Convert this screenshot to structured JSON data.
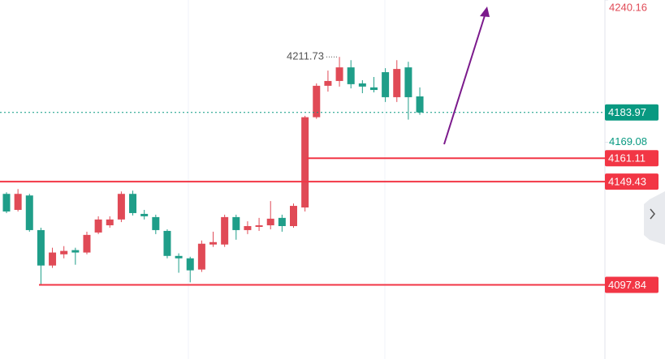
{
  "chart_data": {
    "type": "candlestick",
    "up_color": "#e04a56",
    "down_color": "#1f9e89",
    "level_color": "#f23645",
    "last_color": "#089981",
    "ylim": [
      4060.8,
      4240.16
    ],
    "yticks": [
      4240.16,
      4169.08
    ],
    "last_price": 4183.97,
    "high_label": 4211.73,
    "levels": [
      4161.11,
      4149.43,
      4097.84
    ],
    "candles": [
      {
        "open": 4143.3,
        "high": 4144.1,
        "low": 4133.7,
        "close": 4134.5
      },
      {
        "open": 4135.3,
        "high": 4145.7,
        "low": 4134.5,
        "close": 4143.3
      },
      {
        "open": 4142.5,
        "high": 4143.3,
        "low": 4124.4,
        "close": 4125.2
      },
      {
        "open": 4125.2,
        "high": 4126.4,
        "low": 4097.84,
        "close": 4107.5
      },
      {
        "open": 4107.5,
        "high": 4116.4,
        "low": 4106.3,
        "close": 4114.0
      },
      {
        "open": 4113.1,
        "high": 4117.2,
        "low": 4111.1,
        "close": 4114.8
      },
      {
        "open": 4115.2,
        "high": 4116.4,
        "low": 4107.9,
        "close": 4114.0
      },
      {
        "open": 4114.0,
        "high": 4124.4,
        "low": 4113.1,
        "close": 4122.8
      },
      {
        "open": 4124.0,
        "high": 4132.1,
        "low": 4123.2,
        "close": 4130.5
      },
      {
        "open": 4127.6,
        "high": 4132.1,
        "low": 4126.4,
        "close": 4130.5
      },
      {
        "open": 4130.5,
        "high": 4144.5,
        "low": 4129.2,
        "close": 4143.3
      },
      {
        "open": 4143.3,
        "high": 4144.9,
        "low": 4132.5,
        "close": 4133.7
      },
      {
        "open": 4133.3,
        "high": 4135.3,
        "low": 4130.5,
        "close": 4132.1
      },
      {
        "open": 4131.7,
        "high": 4132.9,
        "low": 4123.2,
        "close": 4125.2
      },
      {
        "open": 4124.8,
        "high": 4125.6,
        "low": 4111.1,
        "close": 4112.3
      },
      {
        "open": 4112.3,
        "high": 4113.6,
        "low": 4103.9,
        "close": 4111.1
      },
      {
        "open": 4111.1,
        "high": 4111.9,
        "low": 4099.1,
        "close": 4105.1
      },
      {
        "open": 4105.5,
        "high": 4120.0,
        "low": 4104.3,
        "close": 4118.4
      },
      {
        "open": 4118.0,
        "high": 4124.4,
        "low": 4116.8,
        "close": 4119.2
      },
      {
        "open": 4118.0,
        "high": 4132.9,
        "low": 4116.8,
        "close": 4131.7
      },
      {
        "open": 4131.7,
        "high": 4132.9,
        "low": 4120.4,
        "close": 4125.2
      },
      {
        "open": 4125.2,
        "high": 4129.6,
        "low": 4123.2,
        "close": 4127.2
      },
      {
        "open": 4126.8,
        "high": 4131.3,
        "low": 4124.8,
        "close": 4127.6
      },
      {
        "open": 4127.6,
        "high": 4139.7,
        "low": 4125.6,
        "close": 4130.9
      },
      {
        "open": 4131.3,
        "high": 4132.9,
        "low": 4124.4,
        "close": 4127.2
      },
      {
        "open": 4127.2,
        "high": 4138.5,
        "low": 4126.4,
        "close": 4137.3
      },
      {
        "open": 4136.5,
        "high": 4182.3,
        "low": 4134.5,
        "close": 4181.6
      },
      {
        "open": 4181.6,
        "high": 4198.5,
        "low": 4180.8,
        "close": 4197.3
      },
      {
        "open": 4197.3,
        "high": 4204.9,
        "low": 4194.4,
        "close": 4199.7
      },
      {
        "open": 4199.7,
        "high": 4211.73,
        "low": 4196.9,
        "close": 4206.5
      },
      {
        "open": 4206.5,
        "high": 4210.1,
        "low": 4196.0,
        "close": 4198.1
      },
      {
        "open": 4198.5,
        "high": 4200.1,
        "low": 4193.6,
        "close": 4196.9
      },
      {
        "open": 4196.5,
        "high": 4201.7,
        "low": 4194.0,
        "close": 4195.2
      },
      {
        "open": 4204.1,
        "high": 4206.1,
        "low": 4189.2,
        "close": 4191.6
      },
      {
        "open": 4191.6,
        "high": 4210.1,
        "low": 4189.2,
        "close": 4205.7
      },
      {
        "open": 4206.5,
        "high": 4209.3,
        "low": 4180.4,
        "close": 4191.6
      },
      {
        "open": 4192.0,
        "high": 4196.5,
        "low": 4182.8,
        "close": 4183.97
      }
    ]
  }
}
